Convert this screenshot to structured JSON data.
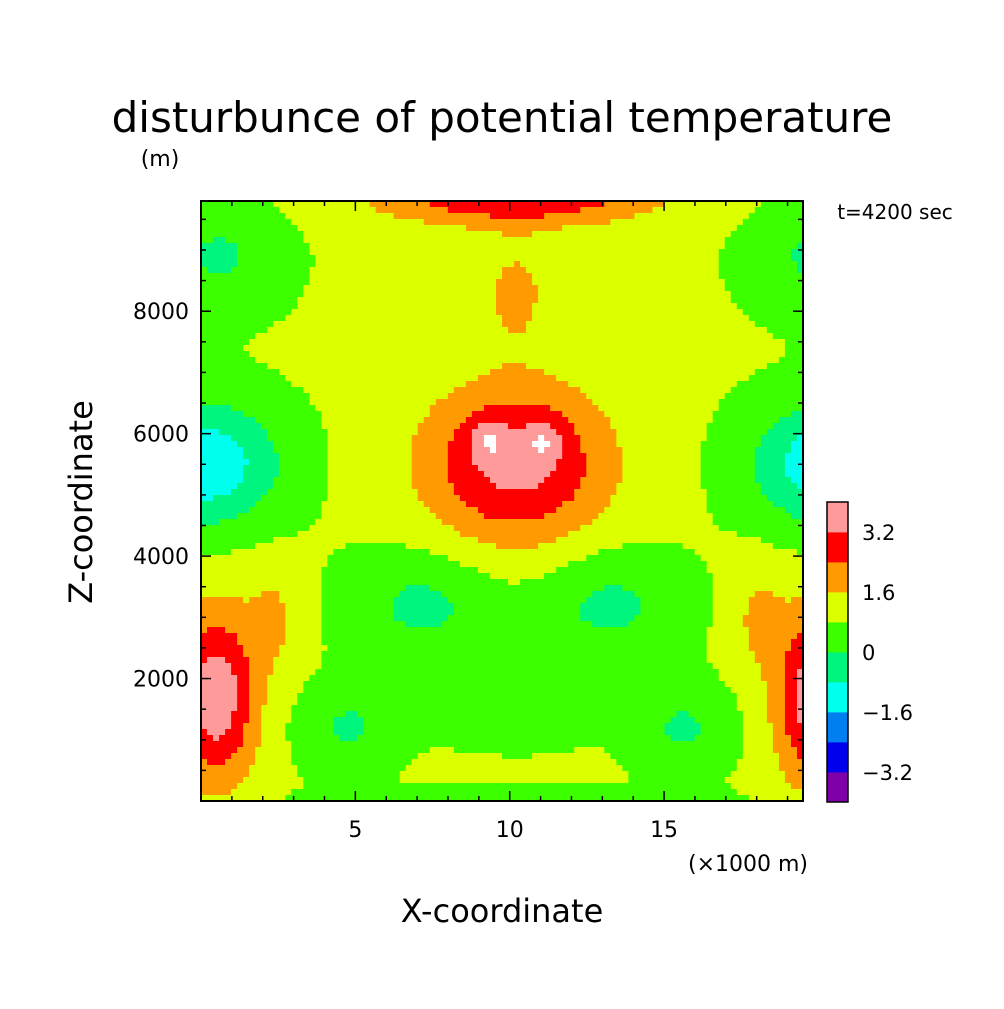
{
  "chart_data": {
    "type": "heatmap",
    "title": "disturbunce of potential temperature",
    "ylabel": "Z-coordinate",
    "yunit": "(m)",
    "xlabel": "X-coordinate",
    "xunit": "(×1000 m)",
    "time_label": "t=4200 sec",
    "xlim": [
      0,
      19.5
    ],
    "ylim": [
      0,
      9800
    ],
    "x_ticks": [
      5,
      10,
      15
    ],
    "y_ticks": [
      2000,
      4000,
      6000,
      8000
    ],
    "colorbar": {
      "levels": [
        -4.0,
        -3.2,
        -2.4,
        -1.6,
        -0.8,
        0,
        0.8,
        1.6,
        2.4,
        3.2,
        4.0
      ],
      "colors": [
        "#7f00a8",
        "#0000ee",
        "#007ff0",
        "#00ffee",
        "#00f57f",
        "#3cff00",
        "#dcff00",
        "#ff9a00",
        "#ff0000",
        "#ff9a9a"
      ],
      "labels": [
        "-3.2",
        "-1.6",
        "0",
        "1.6",
        "3.2"
      ],
      "label_values": [
        -3.2,
        -1.6,
        0,
        1.6,
        3.2
      ]
    },
    "field_description": "symmetric about x=10; values above highest contour shown white",
    "regions": [
      {
        "value": 3.6,
        "x": 9.4,
        "y": 5900
      },
      {
        "value": 3.6,
        "x": 11.0,
        "y": 5900
      },
      {
        "value": 2.8,
        "x": 10.2,
        "y": 5800
      },
      {
        "value": 2.0,
        "x": 10.2,
        "y": 5600
      },
      {
        "value": 2.8,
        "x": 10.2,
        "y": 9500
      },
      {
        "value": 2.0,
        "x": 10.2,
        "y": 9000
      },
      {
        "value": 1.2,
        "x": 10.2,
        "y": 4300
      },
      {
        "value": 0.4,
        "x": 8.0,
        "y": 3400
      },
      {
        "value": 0.4,
        "x": 12.4,
        "y": 3400
      },
      {
        "value": 0.4,
        "x": 5.5,
        "y": 1000
      },
      {
        "value": 0.4,
        "x": 14.9,
        "y": 1000
      },
      {
        "value": 0.4,
        "x": 2.5,
        "y": 5900
      },
      {
        "value": 0.4,
        "x": 17.9,
        "y": 5900
      },
      {
        "value": 0.4,
        "x": 2.5,
        "y": 9000
      },
      {
        "value": 0.4,
        "x": 17.9,
        "y": 9000
      },
      {
        "value": -0.4,
        "x": 0.8,
        "y": 5600
      },
      {
        "value": -0.4,
        "x": 19.6,
        "y": 5600
      },
      {
        "value": -1.2,
        "x": 0.3,
        "y": 5400
      },
      {
        "value": -1.2,
        "x": 20.1,
        "y": 5400
      },
      {
        "value": 2.8,
        "x": 1.2,
        "y": 2000
      },
      {
        "value": 2.8,
        "x": 19.2,
        "y": 2000
      },
      {
        "value": 3.6,
        "x": 0.6,
        "y": 1600
      },
      {
        "value": 3.6,
        "x": 19.8,
        "y": 1600
      },
      {
        "value": 2.0,
        "x": 2.5,
        "y": 2500
      },
      {
        "value": 2.0,
        "x": 17.9,
        "y": 2500
      }
    ]
  }
}
